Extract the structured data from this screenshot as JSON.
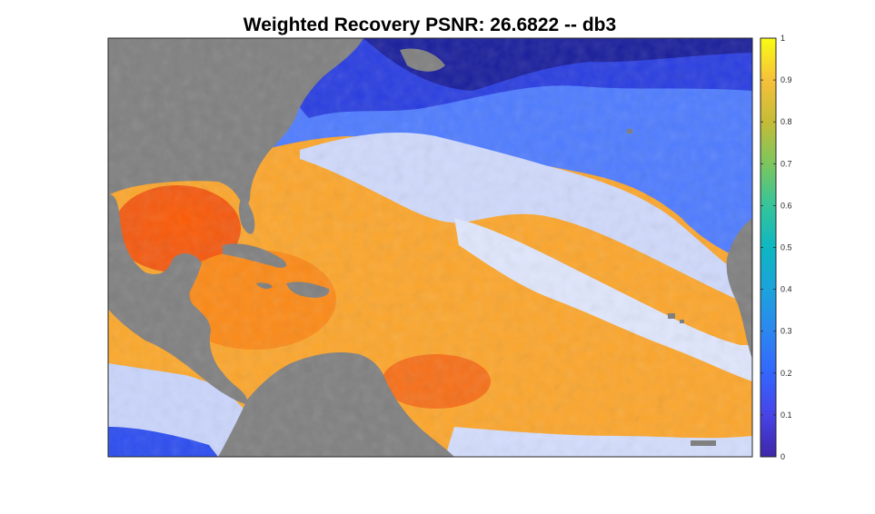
{
  "chart_data": {
    "type": "heatmap",
    "title": "Weighted Recovery PSNR: 26.6822 -- db3",
    "colormap": "parula",
    "clim": [
      0,
      1
    ],
    "missing_color": "#808080",
    "colorbar": {
      "location": "right",
      "ticks": [
        0,
        0.1,
        0.2,
        0.3,
        0.4,
        0.5,
        0.6,
        0.7,
        0.8,
        0.9,
        1
      ],
      "tick_labels": [
        "0",
        "0.1",
        "0.2",
        "0.3",
        "0.4",
        "0.5",
        "0.6",
        "0.7",
        "0.8",
        "0.9",
        "1"
      ]
    },
    "grid": false,
    "axes_ticks_visible": false
  }
}
